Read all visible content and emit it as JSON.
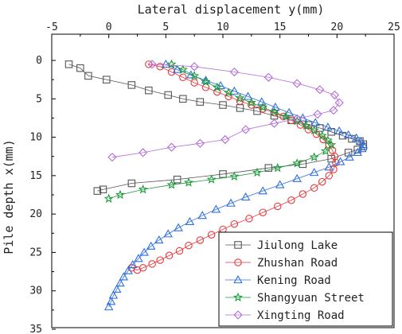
{
  "chart_data": {
    "type": "line",
    "xlabel": "Lateral displacement y(mm)",
    "ylabel": "Pile depth x(mm)",
    "xlim": [
      -5,
      25
    ],
    "ylim": [
      0,
      35
    ],
    "x_axis_position": "top",
    "y_inverted": true,
    "x_ticks": [
      -5,
      0,
      5,
      10,
      15,
      20,
      25
    ],
    "y_ticks": [
      0,
      5,
      10,
      15,
      20,
      25,
      30,
      35
    ],
    "grid": false,
    "legend_position": "bottom-right",
    "series": [
      {
        "name": "Jiulong Lake",
        "marker": "square",
        "color": "#555555",
        "x": [
          -3.5,
          -2.5,
          -1.8,
          -0.2,
          2.0,
          3.5,
          5.2,
          6.5,
          8.0,
          10.0,
          11.5,
          13.0,
          14.5,
          16.0,
          17.5,
          18.5,
          19.5,
          20.5,
          21.3,
          22.0,
          22.3,
          22.3,
          21.8,
          21.0,
          19.5,
          17.0,
          14.0,
          10.0,
          6.0,
          2.0,
          -0.5,
          -1.0
        ],
        "y": [
          0.5,
          1.0,
          2.0,
          2.5,
          3.2,
          3.9,
          4.5,
          5.0,
          5.4,
          5.8,
          6.2,
          6.6,
          7.2,
          7.8,
          8.4,
          8.8,
          9.3,
          9.8,
          10.2,
          10.5,
          10.9,
          11.2,
          11.6,
          12.0,
          12.8,
          13.5,
          14.0,
          14.8,
          15.5,
          16.0,
          16.8,
          17.0
        ]
      },
      {
        "name": "Zhushan Road",
        "marker": "circle",
        "color": "#e8393c",
        "x": [
          3.5,
          4.5,
          5.5,
          6.5,
          7.5,
          8.5,
          9.5,
          10.5,
          11.5,
          12.5,
          13.5,
          14.5,
          15.3,
          16.0,
          16.8,
          17.5,
          18.2,
          18.8,
          19.3,
          19.6,
          19.8,
          19.9,
          19.7,
          19.3,
          18.7,
          18.0,
          17.0,
          16.0,
          14.8,
          13.5,
          12.3,
          11.0,
          10.0,
          9.0,
          8.0,
          7.0,
          6.2,
          5.3,
          4.5,
          3.8,
          3.0,
          2.5,
          2.0
        ],
        "y": [
          0.5,
          0.8,
          1.5,
          2.2,
          2.9,
          3.5,
          4.1,
          4.7,
          5.3,
          5.8,
          6.3,
          6.8,
          7.3,
          7.8,
          8.4,
          9.0,
          9.6,
          10.3,
          11.0,
          11.7,
          12.5,
          13.3,
          14.2,
          15.0,
          15.8,
          16.6,
          17.4,
          18.2,
          19.0,
          19.8,
          20.6,
          21.3,
          22.0,
          22.7,
          23.4,
          24.1,
          24.8,
          25.4,
          26.0,
          26.5,
          27.0,
          27.3,
          27.0
        ]
      },
      {
        "name": "Kening Road",
        "marker": "triangle",
        "color": "#2f6fdf",
        "x": [
          5.0,
          6.0,
          7.2,
          8.5,
          9.8,
          11.0,
          12.2,
          13.4,
          14.6,
          15.8,
          17.0,
          18.1,
          19.2,
          20.2,
          21.0,
          21.7,
          22.1,
          22.3,
          22.2,
          21.8,
          21.1,
          20.3,
          19.3,
          18.0,
          16.5,
          15.0,
          13.5,
          12.0,
          10.7,
          9.4,
          8.2,
          7.1,
          6.1,
          5.2,
          4.4,
          3.7,
          3.1,
          2.6,
          2.1,
          1.7,
          1.3,
          1.0,
          0.7,
          0.4,
          0.2,
          0.0
        ],
        "y": [
          0.5,
          1.2,
          1.9,
          2.6,
          3.3,
          4.0,
          4.7,
          5.4,
          6.1,
          6.8,
          7.5,
          8.1,
          8.7,
          9.2,
          9.7,
          10.1,
          10.6,
          11.0,
          11.5,
          12.0,
          12.6,
          13.2,
          13.9,
          14.6,
          15.4,
          16.2,
          17.0,
          17.8,
          18.6,
          19.4,
          20.2,
          21.0,
          21.8,
          22.6,
          23.4,
          24.2,
          25.0,
          25.8,
          26.6,
          27.4,
          28.2,
          29.0,
          29.8,
          30.6,
          31.4,
          32.1
        ]
      },
      {
        "name": "Shangyuan Street",
        "marker": "star",
        "color": "#1a9a3a",
        "x": [
          5.5,
          6.5,
          7.5,
          8.5,
          9.5,
          10.5,
          11.5,
          12.5,
          13.5,
          14.5,
          15.5,
          16.5,
          17.3,
          18.0,
          18.7,
          19.2,
          19.5,
          19.0,
          18.0,
          16.5,
          14.8,
          13.0,
          11.0,
          9.0,
          7.0,
          5.5,
          3.0,
          1.0,
          0.0
        ],
        "y": [
          0.5,
          1.2,
          2.0,
          2.8,
          3.5,
          4.2,
          4.9,
          5.5,
          6.1,
          6.7,
          7.3,
          7.9,
          8.5,
          9.1,
          9.8,
          10.4,
          11.0,
          11.8,
          12.6,
          13.4,
          14.0,
          14.6,
          15.1,
          15.5,
          15.9,
          16.2,
          16.8,
          17.5,
          18.0
        ]
      },
      {
        "name": "Xingting Road",
        "marker": "diamond",
        "color": "#b36ad9",
        "x": [
          3.8,
          7.5,
          11.0,
          14.0,
          16.5,
          18.5,
          19.8,
          20.2,
          19.7,
          18.3,
          16.5,
          14.5,
          12.0,
          10.2,
          8.0,
          5.5,
          3.0,
          0.3
        ],
        "y": [
          0.5,
          0.8,
          1.5,
          2.2,
          3.0,
          3.8,
          4.5,
          5.5,
          6.5,
          7.0,
          7.6,
          8.2,
          9.0,
          10.3,
          10.8,
          11.3,
          12.0,
          12.6
        ]
      }
    ]
  }
}
